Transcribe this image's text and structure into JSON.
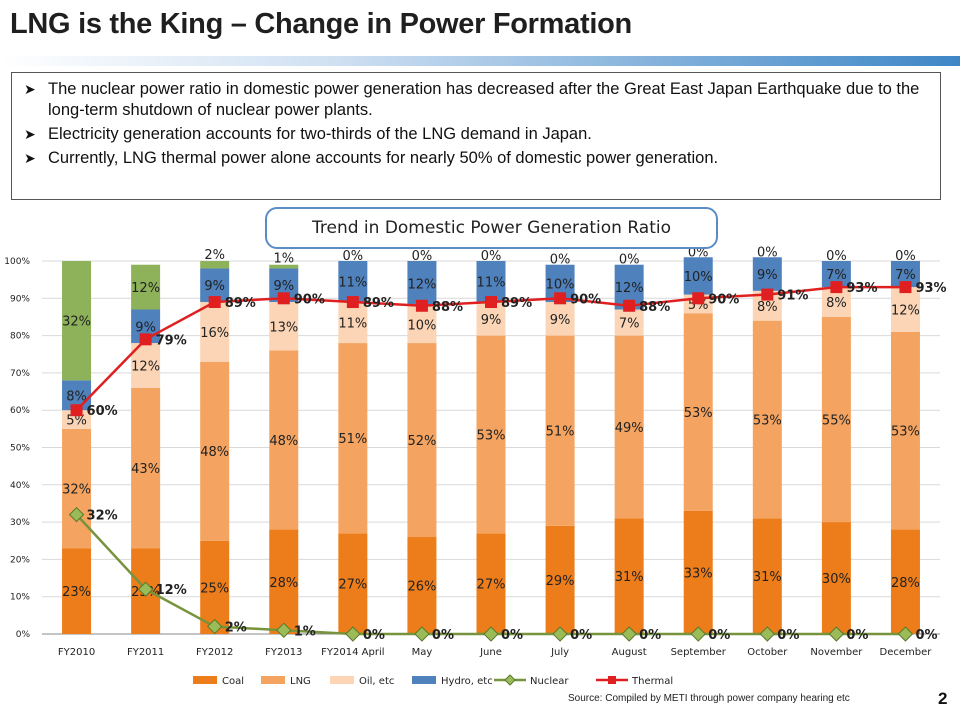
{
  "slide": {
    "title": "LNG is the King – Change in Power Formation",
    "bullets": [
      "The nuclear power ratio in domestic power generation has decreased after the Great East Japan Earthquake due to the long-term shutdown of nuclear power plants.",
      "Electricity generation accounts for two-thirds of the LNG demand in Japan.",
      "Currently, LNG thermal power alone accounts for nearly 50% of domestic power generation."
    ],
    "chart_title": "Trend in Domestic Power Generation Ratio",
    "source": "Source:  Compiled by METI through power company hearing etc",
    "page_number": "2",
    "bullet_icon": "arrow-bullet-icon"
  },
  "chart_data": {
    "type": "bar",
    "stacked": true,
    "title": "Trend in Domestic Power Generation Ratio",
    "categories": [
      "FY2010",
      "FY2011",
      "FY2012",
      "FY2013",
      "FY2014 April",
      "May",
      "June",
      "July",
      "August",
      "September",
      "October",
      "November",
      "December"
    ],
    "ylim": [
      0,
      100
    ],
    "yticks": [
      "0%",
      "10%",
      "20%",
      "30%",
      "40%",
      "50%",
      "60%",
      "70%",
      "80%",
      "90%",
      "100%"
    ],
    "grid": true,
    "legend_position": "bottom",
    "series": [
      {
        "name": "Coal",
        "color": "#ed7d1a",
        "values": [
          23,
          23,
          25,
          28,
          27,
          26,
          27,
          29,
          31,
          33,
          31,
          30,
          28
        ]
      },
      {
        "name": "LNG",
        "color": "#f4a460",
        "values": [
          32,
          43,
          48,
          48,
          51,
          52,
          53,
          51,
          49,
          53,
          53,
          55,
          53
        ]
      },
      {
        "name": "Oil, etc",
        "color": "#fbd5b5",
        "values": [
          5,
          12,
          16,
          13,
          11,
          10,
          9,
          9,
          7,
          5,
          8,
          8,
          12
        ]
      },
      {
        "name": "Hydro, etc",
        "color": "#4f81bd",
        "values": [
          8,
          9,
          9,
          9,
          11,
          12,
          11,
          10,
          12,
          10,
          9,
          7,
          7
        ]
      },
      {
        "name": "Nuclear",
        "color": "#8db25a",
        "values": [
          32,
          12,
          2,
          1,
          0,
          0,
          0,
          0,
          0,
          0,
          0,
          0,
          0
        ]
      }
    ],
    "bar_labels": {
      "Coal": [
        "23%",
        "23%",
        "25%",
        "28%",
        "27%",
        "26%",
        "27%",
        "29%",
        "31%",
        "33%",
        "31%",
        "30%",
        "28%"
      ],
      "LNG": [
        "32%",
        "43%",
        "48%",
        "48%",
        "51%",
        "52%",
        "53%",
        "51%",
        "49%",
        "53%",
        "53%",
        "55%",
        "53%"
      ],
      "Oil, etc": [
        "5%",
        "12%",
        "16%",
        "13%",
        "11%",
        "10%",
        "9%",
        "9%",
        "7%",
        "5%",
        "8%",
        "8%",
        "12%"
      ],
      "Hydro, etc": [
        "8%",
        "9%",
        "9%",
        "9%",
        "11%",
        "12%",
        "11%",
        "10%",
        "12%",
        "10%",
        "9%",
        "7%",
        "7%"
      ],
      "Nuclear": [
        "32%",
        "12%",
        "2%",
        "1%",
        "0%",
        "0%",
        "0%",
        "0%",
        "0%",
        "0%",
        "0%",
        "0%",
        "0%"
      ]
    },
    "lines": [
      {
        "name": "Nuclear",
        "color": "#77933c",
        "marker": "diamond",
        "values": [
          32,
          12,
          2,
          1,
          0,
          0,
          0,
          0,
          0,
          0,
          0,
          0,
          0
        ],
        "labels": [
          "32%",
          "12%",
          "2%",
          "1%",
          "0%",
          "0%",
          "0%",
          "0%",
          "0%",
          "0%",
          "0%",
          "0%",
          "0%"
        ]
      },
      {
        "name": "Thermal",
        "color": "#e02020",
        "marker": "square",
        "values": [
          60,
          79,
          89,
          90,
          89,
          88,
          89,
          90,
          88,
          90,
          91,
          93,
          93
        ],
        "labels": [
          "60%",
          "79%",
          "89%",
          "90%",
          "89%",
          "88%",
          "89%",
          "90%",
          "88%",
          "90%",
          "91%",
          "93%",
          "93%"
        ]
      }
    ],
    "legend": [
      "Coal",
      "LNG",
      "Oil, etc",
      "Hydro, etc",
      "Nuclear",
      "Thermal"
    ]
  }
}
